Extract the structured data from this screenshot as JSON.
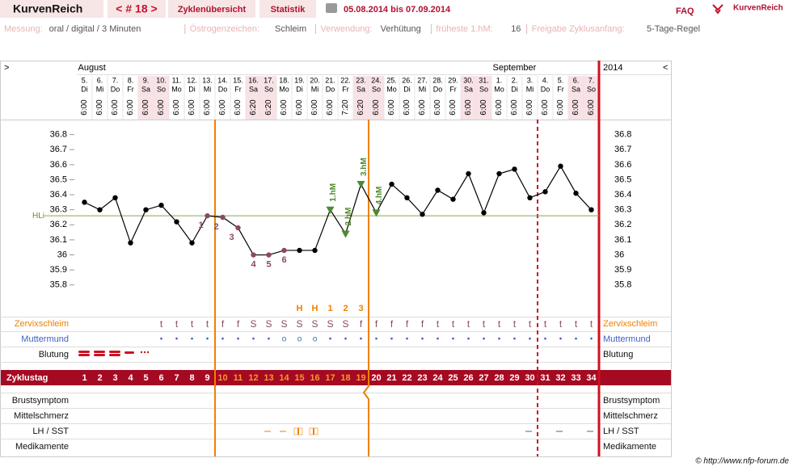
{
  "header": {
    "brand": "KurvenReich",
    "nav": "< # 18 >",
    "tabs": [
      "Zyklenübersicht",
      "Statistik"
    ],
    "date_range": "05.08.2014 bis 07.09.2014",
    "faq": "FAQ",
    "logo": "KurvenReich"
  },
  "info": [
    {
      "label": "Messung:",
      "value": "oral / digital / 3 Minuten"
    },
    {
      "label": "Östrogenzeichen:",
      "value": "Schleim"
    },
    {
      "label": "Verwendung:",
      "value": "Verhütung"
    },
    {
      "label": "früheste 1.hM:",
      "value": "16"
    },
    {
      "label": "Freigabe Zyklusanfang:",
      "value": "5-Tage-Regel"
    }
  ],
  "chart_data": {
    "type": "line",
    "expand": ">",
    "collapse": "<",
    "months": [
      "August",
      "September"
    ],
    "year": "2014",
    "categories": [
      1,
      2,
      3,
      4,
      5,
      6,
      7,
      8,
      9,
      10,
      11,
      12,
      13,
      14,
      15,
      16,
      17,
      18,
      19,
      20,
      21,
      22,
      23,
      24,
      25,
      26,
      27,
      28,
      29,
      30,
      31,
      32,
      33,
      34
    ],
    "dates": [
      "5.",
      "6.",
      "7.",
      "8.",
      "9.",
      "10.",
      "11.",
      "12.",
      "13.",
      "14.",
      "15.",
      "16.",
      "17.",
      "18.",
      "19.",
      "20.",
      "21.",
      "22.",
      "23.",
      "24.",
      "25.",
      "26.",
      "27.",
      "28.",
      "29.",
      "30.",
      "31.",
      "1.",
      "2.",
      "3.",
      "4.",
      "5.",
      "6.",
      "7."
    ],
    "weekdays": [
      "Di",
      "Mi",
      "Do",
      "Fr",
      "Sa",
      "So",
      "Mo",
      "Di",
      "Mi",
      "Do",
      "Fr",
      "Sa",
      "So",
      "Mo",
      "Di",
      "Mi",
      "Do",
      "Fr",
      "Sa",
      "So",
      "Mo",
      "Di",
      "Mi",
      "Do",
      "Fr",
      "Sa",
      "So",
      "Mo",
      "Di",
      "Mi",
      "Do",
      "Fr",
      "Sa",
      "So"
    ],
    "times": [
      "6:00",
      "6:00",
      "6:00",
      "6:00",
      "6:00",
      "6:00",
      "6:00",
      "6:00",
      "6:00",
      "6:00",
      "6:00",
      "6:20",
      "6:20",
      "6:00",
      "6:00",
      "6:00",
      "6:00",
      "7:20",
      "6:20",
      "6:00",
      "6:00",
      "6:00",
      "6:00",
      "6:00",
      "6:00",
      "6:00",
      "6:00",
      "6:00",
      "6:00",
      "6:00",
      "6:00",
      "6:00",
      "6:00",
      "6:00"
    ],
    "values": [
      36.35,
      36.3,
      36.38,
      36.08,
      36.3,
      36.33,
      36.22,
      36.08,
      36.26,
      36.25,
      36.18,
      36.0,
      36.0,
      36.03,
      36.03,
      36.03,
      36.3,
      36.14,
      36.47,
      36.28,
      36.47,
      36.38,
      36.27,
      36.43,
      36.37,
      36.54,
      36.28,
      36.54,
      36.57,
      36.38,
      36.42,
      36.59,
      36.41,
      36.3
    ],
    "color": "#000000",
    "low_color": "#8b4a5a",
    "high_color": "#4f8a2c",
    "low_labels": [
      null,
      null,
      null,
      null,
      null,
      null,
      null,
      null,
      "1",
      "2",
      "3",
      "4",
      "5",
      "6",
      null,
      null,
      null,
      null,
      null,
      null,
      null,
      null,
      null,
      null,
      null,
      null,
      null,
      null,
      null,
      null,
      null,
      null,
      null,
      null
    ],
    "high_labels": [
      null,
      null,
      null,
      null,
      null,
      null,
      null,
      null,
      null,
      null,
      null,
      null,
      null,
      null,
      null,
      null,
      "1.hM",
      "2.hM",
      "3.hM",
      "4.hM",
      null,
      null,
      null,
      null,
      null,
      null,
      null,
      null,
      null,
      null,
      null,
      null,
      null,
      null
    ],
    "hli": {
      "label": "HLi",
      "value": 36.26
    },
    "ylim": [
      35.6,
      36.9
    ],
    "yticks": [
      35.8,
      35.9,
      36,
      36.1,
      36.2,
      36.3,
      36.4,
      36.5,
      36.6,
      36.7,
      36.8
    ],
    "peak_labels": [
      null,
      null,
      null,
      null,
      null,
      null,
      null,
      null,
      null,
      null,
      null,
      null,
      null,
      null,
      "H",
      "H",
      "1",
      "2",
      "3",
      null,
      null,
      null,
      null,
      null,
      null,
      null,
      null,
      null,
      null,
      null,
      null,
      null,
      null,
      null
    ],
    "zervix": {
      "label": "Zervixschleim",
      "values": [
        null,
        null,
        null,
        null,
        null,
        "t",
        "t",
        "t",
        "t",
        "f",
        "f",
        "S",
        "S",
        "S",
        "S",
        "S",
        "S",
        "S",
        "f",
        "f",
        "f",
        "f",
        "f",
        "t",
        "t",
        "t",
        "t",
        "t",
        "t",
        "t",
        "t",
        "t",
        "t",
        "t"
      ]
    },
    "muttermund": {
      "label": "Muttermund",
      "values": [
        null,
        null,
        null,
        null,
        null,
        "•",
        "•",
        "•",
        "•",
        "•",
        "•",
        "•",
        "•",
        "o",
        "o",
        "o",
        "•",
        "•",
        "•",
        "•",
        "•",
        "•",
        "•",
        "•",
        "•",
        "•",
        "•",
        "•",
        "•",
        "•",
        "•",
        "•",
        "•",
        "•"
      ]
    },
    "blutung": "Blutung",
    "zyklustag": "Zyklustag",
    "extra_rows": [
      "Brustsymptom",
      "Mittelschmerz",
      "LH / SST",
      "Medikamente"
    ],
    "footer": "© http://www.nfp-forum.de"
  }
}
